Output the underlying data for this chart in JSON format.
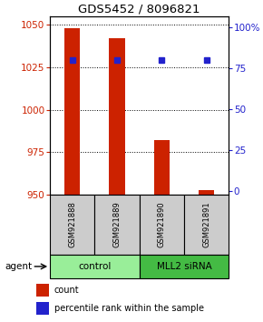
{
  "title": "GDS5452 / 8096821",
  "samples": [
    "GSM921888",
    "GSM921889",
    "GSM921890",
    "GSM921891"
  ],
  "counts": [
    1048,
    1042,
    982,
    953
  ],
  "percentile_pct": [
    80,
    80,
    80,
    80
  ],
  "ylim": [
    950,
    1055
  ],
  "yticks": [
    950,
    975,
    1000,
    1025,
    1050
  ],
  "y2ticks": [
    0,
    25,
    50,
    75,
    100
  ],
  "bar_color": "#cc2200",
  "blue_color": "#2222cc",
  "groups": [
    {
      "label": "control",
      "samples": [
        0,
        1
      ],
      "color": "#99ee99"
    },
    {
      "label": "MLL2 siRNA",
      "samples": [
        2,
        3
      ],
      "color": "#44bb44"
    }
  ],
  "left_color": "#cc2200",
  "right_color": "#2222cc",
  "bar_width": 0.35,
  "agent_label": "agent",
  "legend_count_label": "count",
  "legend_pct_label": "percentile rank within the sample"
}
